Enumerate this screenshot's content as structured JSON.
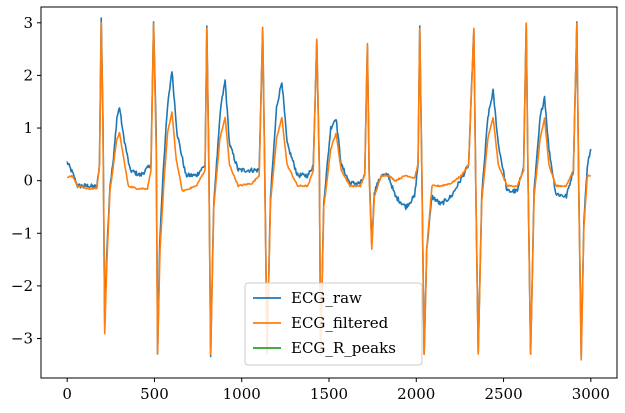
{
  "chart_data": {
    "type": "line",
    "title": "",
    "xlabel": "",
    "ylabel": "",
    "xlim": [
      -150,
      3150
    ],
    "ylim": [
      -3.75,
      3.3
    ],
    "xticks": [
      0,
      500,
      1000,
      1500,
      2000,
      2500,
      3000
    ],
    "yticks": [
      -3,
      -2,
      -1,
      0,
      1,
      2,
      3
    ],
    "grid": false,
    "legend_position": "lower center",
    "x_range": [
      0,
      3000
    ],
    "r_peak_indices": [
      200,
      500,
      800,
      1120,
      1430,
      1720,
      2020,
      2330,
      2630,
      2920
    ],
    "series": [
      {
        "name": "ECG_raw",
        "color": "#1f77b4",
        "baseline": 0.3,
        "points": [
          [
            0,
            0.35
          ],
          [
            30,
            0.15
          ],
          [
            60,
            -0.1
          ],
          [
            120,
            -0.1
          ],
          [
            170,
            -0.12
          ],
          [
            185,
            0.3
          ],
          [
            195,
            3.1
          ],
          [
            205,
            1.2
          ],
          [
            215,
            -2.8
          ],
          [
            225,
            -1.5
          ],
          [
            245,
            -0.1
          ],
          [
            265,
            0.4
          ],
          [
            285,
            1.2
          ],
          [
            300,
            1.4
          ],
          [
            320,
            0.9
          ],
          [
            360,
            0.2
          ],
          [
            420,
            0.1
          ],
          [
            480,
            0.3
          ],
          [
            495,
            3.0
          ],
          [
            510,
            0.9
          ],
          [
            518,
            -3.3
          ],
          [
            530,
            -1.2
          ],
          [
            550,
            0.2
          ],
          [
            575,
            1.4
          ],
          [
            600,
            2.1
          ],
          [
            630,
            0.9
          ],
          [
            680,
            0.1
          ],
          [
            740,
            0.1
          ],
          [
            790,
            0.3
          ],
          [
            800,
            2.9
          ],
          [
            812,
            0.3
          ],
          [
            822,
            -3.3
          ],
          [
            840,
            -0.4
          ],
          [
            880,
            1.4
          ],
          [
            905,
            1.9
          ],
          [
            930,
            0.7
          ],
          [
            980,
            0.2
          ],
          [
            1060,
            0.2
          ],
          [
            1100,
            0.2
          ],
          [
            1120,
            2.9
          ],
          [
            1132,
            0.2
          ],
          [
            1145,
            -3.3
          ],
          [
            1165,
            -0.3
          ],
          [
            1200,
            1.4
          ],
          [
            1230,
            1.9
          ],
          [
            1260,
            0.7
          ],
          [
            1320,
            0.1
          ],
          [
            1380,
            0.1
          ],
          [
            1410,
            0.3
          ],
          [
            1430,
            2.7
          ],
          [
            1445,
            0.2
          ],
          [
            1452,
            -3.3
          ],
          [
            1470,
            -0.4
          ],
          [
            1510,
            1.0
          ],
          [
            1540,
            1.2
          ],
          [
            1570,
            0.3
          ],
          [
            1620,
            -0.05
          ],
          [
            1680,
            -0.05
          ],
          [
            1705,
            0.1
          ],
          [
            1720,
            2.6
          ],
          [
            1730,
            0.2
          ],
          [
            1745,
            -1.2
          ],
          [
            1760,
            -0.2
          ],
          [
            1800,
            0.1
          ],
          [
            1840,
            0.1
          ],
          [
            1880,
            -0.3
          ],
          [
            1940,
            -0.5
          ],
          [
            1990,
            -0.3
          ],
          [
            2010,
            0.3
          ],
          [
            2020,
            2.9
          ],
          [
            2032,
            0.2
          ],
          [
            2045,
            -3.3
          ],
          [
            2060,
            -1.3
          ],
          [
            2090,
            -0.3
          ],
          [
            2140,
            -0.45
          ],
          [
            2200,
            -0.3
          ],
          [
            2260,
            0.05
          ],
          [
            2300,
            0.3
          ],
          [
            2330,
            2.9
          ],
          [
            2340,
            0.1
          ],
          [
            2355,
            -3.3
          ],
          [
            2375,
            -0.3
          ],
          [
            2410,
            1.2
          ],
          [
            2440,
            1.7
          ],
          [
            2470,
            0.7
          ],
          [
            2520,
            -0.2
          ],
          [
            2580,
            -0.2
          ],
          [
            2615,
            0.3
          ],
          [
            2630,
            3.0
          ],
          [
            2640,
            0.1
          ],
          [
            2655,
            -3.3
          ],
          [
            2675,
            -0.2
          ],
          [
            2710,
            1.2
          ],
          [
            2735,
            1.6
          ],
          [
            2760,
            0.6
          ],
          [
            2800,
            -0.25
          ],
          [
            2860,
            -0.3
          ],
          [
            2900,
            0.2
          ],
          [
            2920,
            3.0
          ],
          [
            2930,
            0.1
          ],
          [
            2945,
            -3.3
          ],
          [
            2960,
            -0.8
          ],
          [
            2980,
            0.3
          ],
          [
            3000,
            0.6
          ]
        ]
      },
      {
        "name": "ECG_filtered",
        "color": "#ff7f0e",
        "points": [
          [
            0,
            0.05
          ],
          [
            30,
            0.1
          ],
          [
            60,
            -0.1
          ],
          [
            120,
            -0.15
          ],
          [
            170,
            -0.15
          ],
          [
            185,
            0.3
          ],
          [
            195,
            3.0
          ],
          [
            205,
            1.0
          ],
          [
            215,
            -2.9
          ],
          [
            228,
            -1.5
          ],
          [
            245,
            -0.2
          ],
          [
            265,
            0.3
          ],
          [
            285,
            0.8
          ],
          [
            300,
            0.9
          ],
          [
            320,
            0.5
          ],
          [
            350,
            -0.1
          ],
          [
            400,
            -0.15
          ],
          [
            460,
            -0.15
          ],
          [
            480,
            0.2
          ],
          [
            495,
            3.0
          ],
          [
            510,
            0.6
          ],
          [
            518,
            -3.3
          ],
          [
            532,
            -1.3
          ],
          [
            555,
            0.0
          ],
          [
            575,
            0.9
          ],
          [
            600,
            1.3
          ],
          [
            625,
            0.4
          ],
          [
            660,
            -0.2
          ],
          [
            740,
            -0.1
          ],
          [
            790,
            0.2
          ],
          [
            800,
            2.9
          ],
          [
            812,
            0.1
          ],
          [
            822,
            -3.3
          ],
          [
            840,
            -0.5
          ],
          [
            875,
            0.8
          ],
          [
            905,
            1.2
          ],
          [
            930,
            0.3
          ],
          [
            980,
            -0.1
          ],
          [
            1060,
            -0.05
          ],
          [
            1100,
            0.1
          ],
          [
            1120,
            2.9
          ],
          [
            1132,
            0.1
          ],
          [
            1145,
            -3.3
          ],
          [
            1165,
            -0.4
          ],
          [
            1200,
            0.8
          ],
          [
            1230,
            1.2
          ],
          [
            1260,
            0.3
          ],
          [
            1320,
            -0.1
          ],
          [
            1380,
            -0.1
          ],
          [
            1410,
            0.2
          ],
          [
            1430,
            2.7
          ],
          [
            1445,
            0.1
          ],
          [
            1452,
            -3.3
          ],
          [
            1470,
            -0.5
          ],
          [
            1510,
            0.6
          ],
          [
            1540,
            0.9
          ],
          [
            1570,
            0.2
          ],
          [
            1620,
            -0.1
          ],
          [
            1680,
            -0.1
          ],
          [
            1705,
            0.1
          ],
          [
            1720,
            2.6
          ],
          [
            1730,
            0.1
          ],
          [
            1745,
            -1.3
          ],
          [
            1760,
            -0.3
          ],
          [
            1800,
            0.1
          ],
          [
            1840,
            0.1
          ],
          [
            1880,
            0.0
          ],
          [
            1940,
            0.1
          ],
          [
            1990,
            0.05
          ],
          [
            2010,
            0.3
          ],
          [
            2020,
            2.9
          ],
          [
            2032,
            0.1
          ],
          [
            2045,
            -3.3
          ],
          [
            2060,
            -1.3
          ],
          [
            2090,
            -0.1
          ],
          [
            2140,
            -0.1
          ],
          [
            2200,
            -0.05
          ],
          [
            2260,
            0.1
          ],
          [
            2300,
            0.3
          ],
          [
            2330,
            2.9
          ],
          [
            2340,
            0.1
          ],
          [
            2355,
            -3.3
          ],
          [
            2375,
            -0.4
          ],
          [
            2410,
            0.8
          ],
          [
            2440,
            1.2
          ],
          [
            2470,
            0.3
          ],
          [
            2520,
            -0.1
          ],
          [
            2580,
            -0.1
          ],
          [
            2615,
            0.2
          ],
          [
            2630,
            3.0
          ],
          [
            2640,
            0.1
          ],
          [
            2655,
            -3.3
          ],
          [
            2675,
            -0.3
          ],
          [
            2710,
            0.8
          ],
          [
            2735,
            1.2
          ],
          [
            2760,
            0.3
          ],
          [
            2800,
            -0.1
          ],
          [
            2860,
            -0.1
          ],
          [
            2900,
            0.2
          ],
          [
            2920,
            3.0
          ],
          [
            2930,
            0.1
          ],
          [
            2945,
            -3.4
          ],
          [
            2960,
            -0.9
          ],
          [
            2980,
            0.1
          ],
          [
            3000,
            0.1
          ]
        ]
      },
      {
        "name": "ECG_R_peaks",
        "color": "#2ca02c",
        "points": []
      }
    ],
    "legend": [
      "ECG_raw",
      "ECG_filtered",
      "ECG_R_peaks"
    ]
  }
}
